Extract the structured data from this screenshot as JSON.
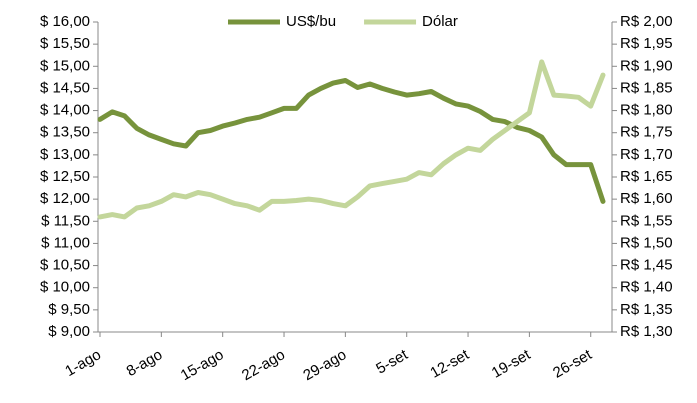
{
  "chart_data": {
    "type": "line",
    "categories": [
      "1-ago",
      null,
      null,
      null,
      null,
      "8-ago",
      null,
      null,
      null,
      null,
      "15-ago",
      null,
      null,
      null,
      null,
      "22-ago",
      null,
      null,
      null,
      null,
      "29-ago",
      null,
      null,
      null,
      null,
      "5-set",
      null,
      null,
      null,
      null,
      "12-set",
      null,
      null,
      null,
      null,
      "19-set",
      null,
      null,
      null,
      null,
      "26-set",
      null
    ],
    "series": [
      {
        "name": "US$/bu",
        "color": "#77933c",
        "axis": "y",
        "values": [
          13.8,
          13.97,
          13.88,
          13.6,
          13.45,
          13.35,
          13.25,
          13.2,
          13.5,
          13.55,
          13.65,
          13.72,
          13.8,
          13.85,
          13.95,
          14.05,
          14.05,
          14.35,
          14.5,
          14.62,
          14.68,
          14.52,
          14.6,
          14.5,
          14.42,
          14.35,
          14.38,
          14.43,
          14.28,
          14.15,
          14.1,
          13.98,
          13.8,
          13.75,
          13.62,
          13.55,
          13.4,
          13.0,
          12.78,
          12.78,
          12.78,
          11.95
        ]
      },
      {
        "name": "Dólar",
        "color": "#c3d69b",
        "axis": "y2",
        "values": [
          1.56,
          1.565,
          1.56,
          1.58,
          1.585,
          1.595,
          1.61,
          1.605,
          1.615,
          1.61,
          1.6,
          1.59,
          1.585,
          1.575,
          1.595,
          1.595,
          1.597,
          1.6,
          1.597,
          1.59,
          1.585,
          1.605,
          1.63,
          1.635,
          1.64,
          1.645,
          1.66,
          1.655,
          1.68,
          1.7,
          1.715,
          1.71,
          1.735,
          1.755,
          1.775,
          1.795,
          1.91,
          1.835,
          1.833,
          1.83,
          1.81,
          1.88
        ]
      }
    ],
    "ylim": [
      9,
      16
    ],
    "yticks": [
      {
        "value": 9,
        "label": "$ 9,00"
      },
      {
        "value": 9.5,
        "label": "$ 9,50"
      },
      {
        "value": 10,
        "label": "$ 10,00"
      },
      {
        "value": 10.5,
        "label": "$ 10,50"
      },
      {
        "value": 11,
        "label": "$ 11,00"
      },
      {
        "value": 11.5,
        "label": "$ 11,50"
      },
      {
        "value": 12,
        "label": "$ 12,00"
      },
      {
        "value": 12.5,
        "label": "$ 12,50"
      },
      {
        "value": 13,
        "label": "$ 13,00"
      },
      {
        "value": 13.5,
        "label": "$ 13,50"
      },
      {
        "value": 14,
        "label": "$ 14,00"
      },
      {
        "value": 14.5,
        "label": "$ 14,50"
      },
      {
        "value": 15,
        "label": "$ 15,00"
      },
      {
        "value": 15.5,
        "label": "$ 15,50"
      },
      {
        "value": 16,
        "label": "$ 16,00"
      }
    ],
    "y2lim": [
      1.3,
      2.0
    ],
    "y2ticks": [
      {
        "value": 1.3,
        "label": "R$ 1,30"
      },
      {
        "value": 1.35,
        "label": "R$ 1,35"
      },
      {
        "value": 1.4,
        "label": "R$ 1,40"
      },
      {
        "value": 1.45,
        "label": "R$ 1,45"
      },
      {
        "value": 1.5,
        "label": "R$ 1,50"
      },
      {
        "value": 1.55,
        "label": "R$ 1,55"
      },
      {
        "value": 1.6,
        "label": "R$ 1,60"
      },
      {
        "value": 1.65,
        "label": "R$ 1,65"
      },
      {
        "value": 1.7,
        "label": "R$ 1,70"
      },
      {
        "value": 1.75,
        "label": "R$ 1,75"
      },
      {
        "value": 1.8,
        "label": "R$ 1,80"
      },
      {
        "value": 1.85,
        "label": "R$ 1,85"
      },
      {
        "value": 1.9,
        "label": "R$ 1,90"
      },
      {
        "value": 1.95,
        "label": "R$ 1,95"
      },
      {
        "value": 2.0,
        "label": "R$ 2,00"
      }
    ],
    "grid": false,
    "legend": "top"
  }
}
